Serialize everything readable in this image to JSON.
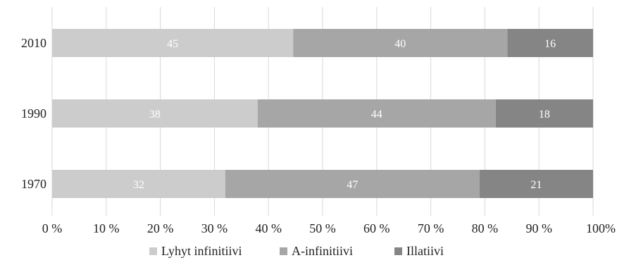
{
  "chart_data": {
    "type": "bar",
    "orientation": "horizontal",
    "stacked": "percent",
    "categories": [
      "2010",
      "1990",
      "1970"
    ],
    "series": [
      {
        "name": "Lyhyt infinitiivi",
        "values": [
          45,
          38,
          32
        ],
        "color": "#cccccc"
      },
      {
        "name": "A-infinitiivi",
        "values": [
          40,
          44,
          47
        ],
        "color": "#a6a6a6"
      },
      {
        "name": "Illatiivi",
        "values": [
          16,
          18,
          21
        ],
        "color": "#858585"
      }
    ],
    "x_ticks": [
      "0 %",
      "10 %",
      "20 %",
      "30 %",
      "40 %",
      "50 %",
      "60 %",
      "70 %",
      "80 %",
      "90 %",
      "100%"
    ],
    "xlim": [
      0,
      100
    ],
    "grid": true,
    "legend": "bottom",
    "title": "",
    "xlabel": "",
    "ylabel": ""
  }
}
